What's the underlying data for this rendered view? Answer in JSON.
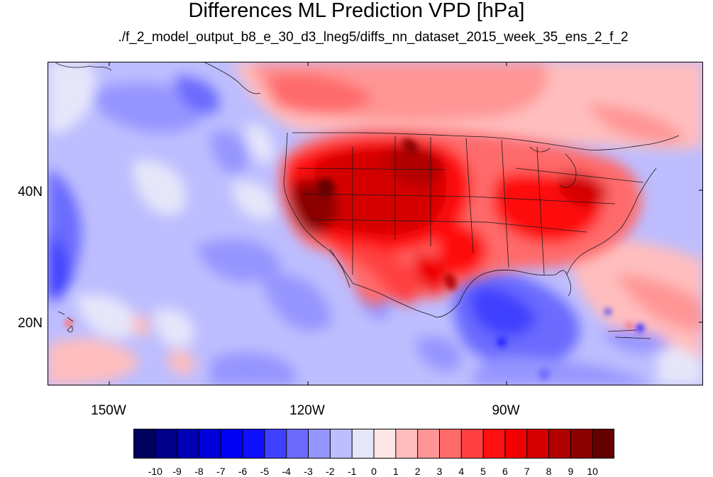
{
  "title": "Differences ML Prediction VPD [hPa]",
  "subtitle": "./f_2_model_output_b8_e_30_d3_lneg5/diffs_nn_dataset_2015_week_35_ens_2_f_2",
  "map": {
    "lat_labels": [
      "40N",
      "20N"
    ],
    "lon_labels": [
      "150W",
      "120W",
      "90W"
    ]
  },
  "colorbar": {
    "labels": [
      "-10",
      "-9",
      "-8",
      "-7",
      "-6",
      "-5",
      "-4",
      "-3",
      "-2",
      "-1",
      "0",
      "1",
      "2",
      "3",
      "4",
      "5",
      "6",
      "7",
      "8",
      "9",
      "10"
    ],
    "colors": [
      "#00005f",
      "#00008a",
      "#0000b4",
      "#0000d8",
      "#0000f4",
      "#1010ff",
      "#4040ff",
      "#6a6aff",
      "#9595ff",
      "#bdbdff",
      "#e6e6fa",
      "#ffe6e6",
      "#ffbdbd",
      "#ff9595",
      "#ff6a6a",
      "#ff4040",
      "#ff1010",
      "#f00000",
      "#d40000",
      "#b00000",
      "#8c0000",
      "#640000"
    ]
  }
}
